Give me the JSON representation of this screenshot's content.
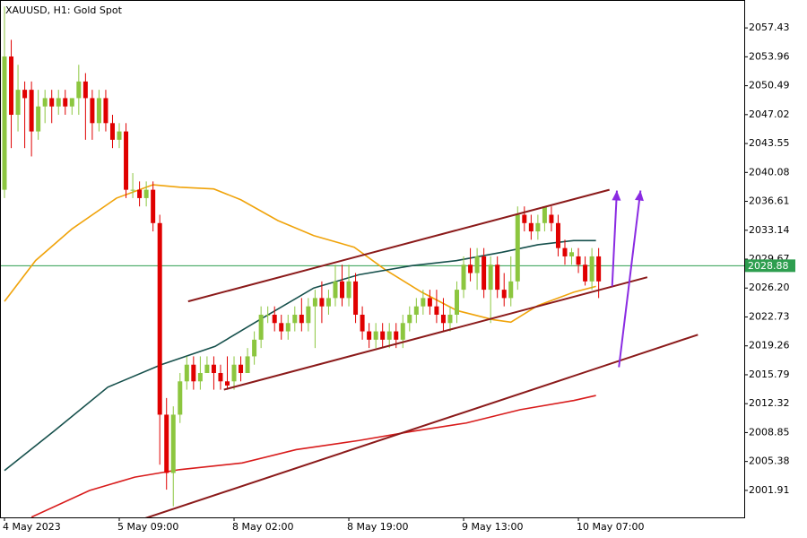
{
  "chart_data": {
    "type": "candlestick",
    "title": "XAUUSD, H1:  Gold Spot",
    "categories": [
      "4 May 2023",
      null,
      null,
      null,
      null,
      null,
      null,
      null,
      null,
      null,
      null,
      null,
      null,
      null,
      null,
      null,
      null,
      "5 May 09:00",
      null,
      null,
      null,
      null,
      null,
      null,
      null,
      null,
      null,
      null,
      null,
      null,
      null,
      null,
      null,
      null,
      "8 May 02:00",
      null,
      null,
      null,
      null,
      null,
      null,
      null,
      null,
      null,
      null,
      null,
      null,
      null,
      null,
      null,
      null,
      "8 May 19:00",
      null,
      null,
      null,
      null,
      null,
      null,
      null,
      null,
      null,
      null,
      null,
      null,
      null,
      null,
      null,
      null,
      "9 May 13:00",
      null,
      null,
      null,
      null,
      null,
      null,
      null,
      null,
      null,
      null,
      null,
      null,
      null,
      null,
      null,
      null,
      "10 May 07:00",
      null,
      null,
      null
    ],
    "open": [
      2038,
      2054,
      2047,
      2050,
      2050,
      2045,
      2048,
      2049,
      2048,
      2049,
      2048,
      2049,
      2051,
      2049,
      2046,
      2049,
      2046,
      2044,
      2045,
      2038,
      2038,
      2037,
      2038,
      2034,
      2011,
      2004,
      2011,
      2015,
      2017,
      2015,
      2016,
      2017,
      2016,
      2015,
      2015,
      2017,
      2016,
      2018,
      2020,
      2023,
      2023,
      2022,
      2021,
      2022,
      2023,
      2022,
      2024,
      2025,
      2024,
      2025,
      2027,
      2025,
      2027,
      2023,
      2021,
      2020,
      2021,
      2020,
      2021,
      2020,
      2022,
      2023,
      2024,
      2025,
      2024,
      2023,
      2022,
      2023,
      2026,
      2029,
      2028,
      2030,
      2026,
      2029,
      2026,
      2025,
      2027,
      2035,
      2034,
      2033,
      2034,
      2035,
      2034,
      2031,
      2030,
      2030,
      2029,
      2027,
      2030
    ],
    "high": [
      2060,
      2056,
      2053,
      2051,
      2051,
      2050,
      2050,
      2050,
      2050,
      2050,
      2049,
      2053,
      2052,
      2050,
      2050,
      2050,
      2047,
      2046,
      2046,
      2040,
      2039,
      2039,
      2039,
      2035,
      2013,
      2012,
      2016,
      2018,
      2018,
      2018,
      2018,
      2018,
      2017,
      2018,
      2018,
      2018,
      2019,
      2021,
      2024,
      2024,
      2024,
      2023,
      2023,
      2024,
      2025,
      2025,
      2026,
      2027,
      2026,
      2029,
      2029,
      2029,
      2028,
      2024,
      2022,
      2022,
      2022,
      2022,
      2022,
      2023,
      2024,
      2025,
      2026,
      2026,
      2026,
      2025,
      2024,
      2027,
      2030,
      2031,
      2031,
      2031,
      2030,
      2030,
      2028,
      2030,
      2036,
      2036,
      2035,
      2035,
      2036,
      2036,
      2035,
      2032,
      2031,
      2031,
      2030,
      2031,
      2031
    ],
    "low": [
      2037,
      2043,
      2045,
      2043,
      2042,
      2044,
      2046,
      2046,
      2047,
      2047,
      2047,
      2047,
      2044,
      2044,
      2045,
      2045,
      2043,
      2043,
      2037,
      2037,
      2036,
      2036,
      2033,
      2005,
      2002,
      2000,
      2010,
      2014,
      2014,
      2014,
      2016,
      2014,
      2014,
      2014,
      2014,
      2015,
      2016,
      2017,
      2019,
      2022,
      2021,
      2020,
      2020,
      2021,
      2021,
      2021,
      2019,
      2022,
      2023,
      2024,
      2024,
      2024,
      2022,
      2020,
      2019,
      2019,
      2019,
      2019,
      2019,
      2019,
      2021,
      2022,
      2023,
      2023,
      2022,
      2021,
      2021,
      2022,
      2025,
      2027,
      2026,
      2025,
      2022,
      2025,
      2024,
      2024,
      2026,
      2033,
      2032,
      2032,
      2033,
      2033,
      2030,
      2029,
      2029,
      2028,
      2026.5,
      2026,
      2025
    ],
    "close": [
      2054,
      2047,
      2050,
      2049,
      2045,
      2048,
      2049,
      2048,
      2049,
      2048,
      2049,
      2051,
      2049,
      2046,
      2049,
      2046,
      2044,
      2045,
      2038,
      2038,
      2037,
      2038,
      2034,
      2011,
      2004,
      2011,
      2015,
      2017,
      2015,
      2016,
      2017,
      2016,
      2015,
      2014.5,
      2017,
      2016,
      2018,
      2020,
      2023,
      2023,
      2022,
      2021,
      2022,
      2023,
      2022,
      2024,
      2025,
      2024,
      2025,
      2027,
      2025,
      2027,
      2023,
      2021,
      2020,
      2021,
      2020,
      2021,
      2020,
      2022,
      2023,
      2024,
      2025,
      2024,
      2023,
      2022,
      2023,
      2026,
      2029,
      2028,
      2030,
      2026,
      2029,
      2026,
      2025,
      2027,
      2035,
      2034,
      2033,
      2034,
      2036,
      2034,
      2031,
      2030,
      2030.5,
      2029,
      2027,
      2030,
      2027
    ],
    "up_color": "#8cc63f",
    "down_color": "#e00000",
    "ylim": [
      1998.67,
      2060.78
    ],
    "yticks": [
      2057.43,
      2053.96,
      2050.49,
      2047.02,
      2043.55,
      2040.08,
      2036.61,
      2033.14,
      2029.67,
      {
        "value": 2026.2,
        "label": "2026.20"
      },
      2022.73,
      2019.26,
      2015.79,
      2012.32,
      2008.85,
      2005.38,
      2001.91
    ],
    "price_line": {
      "value": 2028.88,
      "color": "#2e9e4f"
    },
    "lines": [
      {
        "color": "#f0a30a",
        "x": [
          0,
          4.6,
          10,
          16.6,
          22,
          26,
          31,
          35,
          40.5,
          45.8,
          51.8,
          56.4,
          61.8,
          67,
          72.4,
          75,
          79,
          84.3,
          87.6
        ],
        "values": [
          2024.6,
          2029.5,
          2033.3,
          2037.0,
          2038.6,
          2038.3,
          2038.1,
          2036.8,
          2034.3,
          2032.5,
          2031.1,
          2028.4,
          2025.7,
          2023.5,
          2022.4,
          2022.1,
          2024.1,
          2025.7,
          2026.4
        ]
      },
      {
        "color": "#16504c",
        "x": [
          0,
          7.3,
          15.3,
          23.2,
          31.2,
          37.8,
          45.8,
          52.5,
          60.4,
          67,
          73.7,
          79,
          84.3,
          87.6
        ],
        "values": [
          2004.3,
          2009.0,
          2014.3,
          2017.0,
          2019.2,
          2022.4,
          2026.2,
          2027.8,
          2028.9,
          2029.5,
          2030.5,
          2031.4,
          2031.9,
          2031.9
        ]
      },
      {
        "color": "#d81b1b",
        "x": [
          4,
          12.6,
          19.3,
          25.9,
          35.2,
          43.2,
          52.5,
          60.4,
          68.4,
          76.4,
          84.3,
          87.6
        ],
        "values": [
          1998.7,
          2001.9,
          2003.5,
          2004.4,
          2005.2,
          2006.8,
          2007.9,
          2009.0,
          2010.0,
          2011.6,
          2012.7,
          2013.3
        ]
      }
    ],
    "trendlines": [
      {
        "color": "#8b1a1a",
        "x": [
          27.2,
          89.6
        ],
        "values": [
          2024.6,
          2038.0
        ]
      },
      {
        "color": "#8b1a1a",
        "x": [
          32.5,
          95.2
        ],
        "values": [
          2014.0,
          2027.5
        ]
      },
      {
        "color": "#8b1a1a",
        "x": [
          20.6,
          102.7
        ],
        "values": [
          1998.5,
          2020.6
        ]
      }
    ],
    "arrows": [
      {
        "color": "#8a2be2",
        "x": [
          90,
          90.7
        ],
        "values": [
          2026.4,
          2037.9
        ]
      },
      {
        "color": "#8a2be2",
        "x": [
          91,
          94.2
        ],
        "values": [
          2016.7,
          2037.9
        ]
      }
    ]
  }
}
